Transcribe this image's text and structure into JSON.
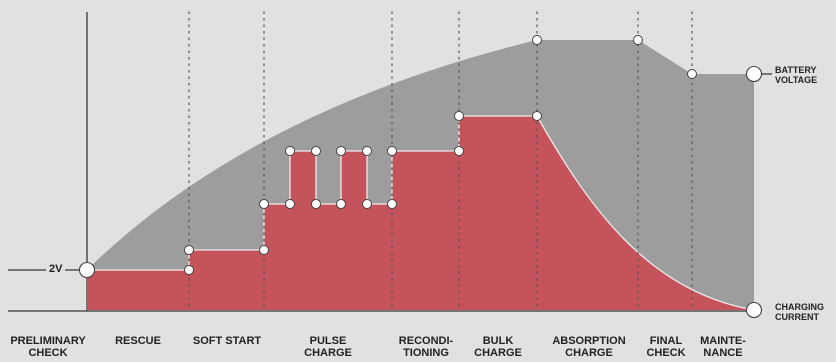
{
  "diagram": {
    "stages": [
      "PRELIMINARY\nCHECK",
      "RESCUE",
      "SOFT START",
      "PULSE\nCHARGE",
      "RECONDI-\nTIONING",
      "BULK\nCHARGE",
      "ABSORPTION\nCHARGE",
      "FINAL\nCHECK",
      "MAINTE-\nNANCE"
    ],
    "start_voltage_label": "2V",
    "battery_voltage_label": "BATTERY\nVOLTAGE",
    "charging_current_label": "CHARGING\nCURRENT",
    "colors": {
      "background": "#e1e1e1",
      "voltage_area": "#9d9d9d",
      "current_area": "#c4535b",
      "outline": "#ffffff",
      "text": "#222222"
    }
  }
}
